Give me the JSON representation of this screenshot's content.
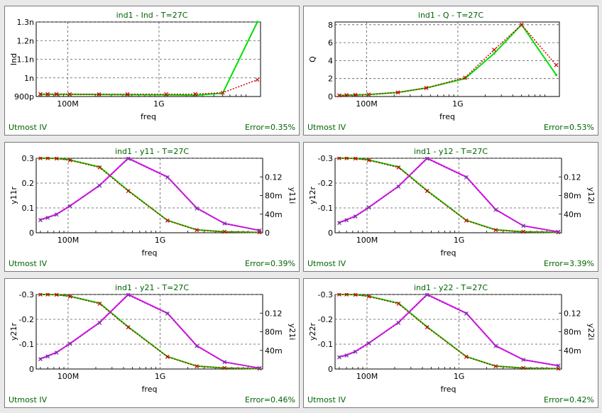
{
  "colors": {
    "measured": "#00e000",
    "simulated": "#cc0000",
    "imag_measured": "#ff00ff",
    "imag_simulated": "#6a3d9a",
    "text": "#006400"
  },
  "chart_data": [
    {
      "type": "line",
      "title": "ind1 - Ind - T=27C",
      "xlabel": "freq",
      "ylabel": "Ind",
      "x_scale": "log",
      "xlim": [
        45000000.0,
        13000000000.0
      ],
      "x_ticks": [
        {
          "v": 100000000.0,
          "label": "100M"
        },
        {
          "v": 1000000000.0,
          "label": "1G"
        }
      ],
      "ylim": [
        9e-10,
        1.3e-09
      ],
      "y_ticks": [
        {
          "v": 9e-10,
          "label": "900p"
        },
        {
          "v": 1e-09,
          "label": "1n"
        },
        {
          "v": 1.1e-09,
          "label": "1.1n"
        },
        {
          "v": 1.2e-09,
          "label": "1.2n"
        },
        {
          "v": 1.3e-09,
          "label": "1.3n"
        }
      ],
      "x": [
        50000000.0,
        60000000.0,
        75000000.0,
        105000000.0,
        220000000.0,
        450000000.0,
        1200000000.0,
        2500000000.0,
        5000000000.0,
        12000000000.0
      ],
      "series": [
        {
          "values": [
            9.12e-10,
            9.12e-10,
            9.12e-10,
            9.12e-10,
            9.11e-10,
            9.1e-10,
            9.09e-10,
            9.07e-10,
            9.18e-10,
            1.3e-09
          ]
        },
        {
          "values": [
            9.13e-10,
            9.13e-10,
            9.13e-10,
            9.12e-10,
            9.12e-10,
            9.12e-10,
            9.12e-10,
            9.13e-10,
            9.2e-10,
            9.9e-10
          ]
        }
      ],
      "footer_label": "Utmost IV",
      "error": "Error=0.35%"
    },
    {
      "type": "line",
      "title": "ind1 - Q - T=27C",
      "xlabel": "freq",
      "ylabel": "Q",
      "x_scale": "log",
      "xlim": [
        45000000.0,
        13000000000.0
      ],
      "x_ticks": [
        {
          "v": 100000000.0,
          "label": "100M"
        },
        {
          "v": 1000000000.0,
          "label": "1G"
        }
      ],
      "ylim": [
        0,
        8.3
      ],
      "y_ticks": [
        {
          "v": 0,
          "label": "0"
        },
        {
          "v": 2,
          "label": "2"
        },
        {
          "v": 4,
          "label": "4"
        },
        {
          "v": 6,
          "label": "6"
        },
        {
          "v": 8,
          "label": "8"
        }
      ],
      "x": [
        50000000.0,
        60000000.0,
        75000000.0,
        105000000.0,
        220000000.0,
        450000000.0,
        1200000000.0,
        2500000000.0,
        5000000000.0,
        12000000000.0
      ],
      "series": [
        {
          "values": [
            0.12,
            0.15,
            0.18,
            0.22,
            0.45,
            0.95,
            2.0,
            4.8,
            8.0,
            2.4
          ]
        },
        {
          "values": [
            0.12,
            0.15,
            0.18,
            0.22,
            0.45,
            0.95,
            2.1,
            5.2,
            8.0,
            3.5
          ]
        }
      ],
      "footer_label": "Utmost IV",
      "error": "Error=0.53%"
    },
    {
      "type": "line",
      "title": "ind1 - y11 - T=27C",
      "xlabel": "freq",
      "ylabel": "y11r",
      "y2label": "y11i",
      "x_scale": "log",
      "xlim": [
        45000000.0,
        13000000000.0
      ],
      "x_ticks": [
        {
          "v": 100000000.0,
          "label": "100M"
        },
        {
          "v": 1000000000.0,
          "label": "1G"
        }
      ],
      "ylim": [
        0,
        0.3
      ],
      "y_ticks": [
        {
          "v": 0,
          "label": "0"
        },
        {
          "v": 0.1,
          "label": "0.1"
        },
        {
          "v": 0.2,
          "label": "0.2"
        },
        {
          "v": 0.3,
          "label": "0.3"
        }
      ],
      "y2lim": [
        0,
        0.16
      ],
      "y2_ticks": [
        {
          "v": 0,
          "label": "0"
        },
        {
          "v": 0.04,
          "label": "40m"
        },
        {
          "v": 0.08,
          "label": "80m"
        },
        {
          "v": 0.12,
          "label": "0.12"
        }
      ],
      "x": [
        50000000.0,
        60000000.0,
        75000000.0,
        105000000.0,
        220000000.0,
        450000000.0,
        1200000000.0,
        2500000000.0,
        5000000000.0,
        12000000000.0
      ],
      "series": [
        {
          "axis": "y",
          "values": [
            0.3,
            0.3,
            0.299,
            0.293,
            0.265,
            0.17,
            0.05,
            0.012,
            0.004,
            0.0015
          ]
        },
        {
          "axis": "y",
          "values": [
            0.3,
            0.3,
            0.299,
            0.292,
            0.263,
            0.168,
            0.049,
            0.011,
            0.004,
            0.0015
          ]
        },
        {
          "axis": "y2",
          "values": [
            0.028,
            0.033,
            0.04,
            0.058,
            0.102,
            0.16,
            0.12,
            0.053,
            0.02,
            0.005
          ]
        },
        {
          "axis": "y2",
          "values": [
            0.027,
            0.032,
            0.039,
            0.057,
            0.101,
            0.159,
            0.119,
            0.052,
            0.02,
            0.005
          ]
        }
      ],
      "footer_label": "Utmost IV",
      "error": "Error=0.39%"
    },
    {
      "type": "line",
      "title": "ind1 - y12 - T=27C",
      "xlabel": "freq",
      "ylabel": "y12r",
      "y2label": "y12i",
      "x_scale": "log",
      "xlim": [
        45000000.0,
        13000000000.0
      ],
      "x_ticks": [
        {
          "v": 100000000.0,
          "label": "100M"
        },
        {
          "v": 1000000000.0,
          "label": "1G"
        }
      ],
      "ylim": [
        0,
        0.3
      ],
      "y_ticks": [
        {
          "v": 0,
          "label": "0"
        },
        {
          "v": 0.1,
          "label": "-0.1"
        },
        {
          "v": 0.2,
          "label": "-0.2"
        },
        {
          "v": 0.3,
          "label": "-0.3"
        }
      ],
      "y2lim": [
        0,
        0.16
      ],
      "y2_ticks": [
        {
          "v": 0.04,
          "label": "40m"
        },
        {
          "v": 0.08,
          "label": "80m"
        },
        {
          "v": 0.12,
          "label": "0.12"
        }
      ],
      "x": [
        50000000.0,
        60000000.0,
        75000000.0,
        105000000.0,
        220000000.0,
        450000000.0,
        1200000000.0,
        2500000000.0,
        5000000000.0,
        12000000000.0
      ],
      "series": [
        {
          "axis": "y",
          "values": [
            0.3,
            0.3,
            0.299,
            0.293,
            0.265,
            0.17,
            0.05,
            0.012,
            0.004,
            0.0015
          ]
        },
        {
          "axis": "y",
          "values": [
            0.3,
            0.3,
            0.299,
            0.292,
            0.263,
            0.168,
            0.049,
            0.011,
            0.004,
            0.0015
          ]
        },
        {
          "axis": "y2",
          "values": [
            0.022,
            0.028,
            0.036,
            0.055,
            0.1,
            0.16,
            0.12,
            0.05,
            0.015,
            0.002
          ]
        },
        {
          "axis": "y2",
          "values": [
            0.021,
            0.027,
            0.035,
            0.054,
            0.099,
            0.159,
            0.119,
            0.049,
            0.015,
            0.002
          ]
        }
      ],
      "footer_label": "Utmost IV",
      "error": "Error=3.39%"
    },
    {
      "type": "line",
      "title": "ind1 - y21 - T=27C",
      "xlabel": "freq",
      "ylabel": "y21r",
      "y2label": "y21i",
      "x_scale": "log",
      "xlim": [
        45000000.0,
        13000000000.0
      ],
      "x_ticks": [
        {
          "v": 100000000.0,
          "label": "100M"
        },
        {
          "v": 1000000000.0,
          "label": "1G"
        }
      ],
      "ylim": [
        0,
        0.3
      ],
      "y_ticks": [
        {
          "v": 0,
          "label": "0"
        },
        {
          "v": 0.1,
          "label": "-0.1"
        },
        {
          "v": 0.2,
          "label": "-0.2"
        },
        {
          "v": 0.3,
          "label": "-0.3"
        }
      ],
      "y2lim": [
        0,
        0.16
      ],
      "y2_ticks": [
        {
          "v": 0.04,
          "label": "40m"
        },
        {
          "v": 0.08,
          "label": "80m"
        },
        {
          "v": 0.12,
          "label": "0.12"
        }
      ],
      "x": [
        50000000.0,
        60000000.0,
        75000000.0,
        105000000.0,
        220000000.0,
        450000000.0,
        1200000000.0,
        2500000000.0,
        5000000000.0,
        12000000000.0
      ],
      "series": [
        {
          "axis": "y",
          "values": [
            0.3,
            0.3,
            0.299,
            0.293,
            0.265,
            0.17,
            0.05,
            0.012,
            0.004,
            0.0015
          ]
        },
        {
          "axis": "y",
          "values": [
            0.3,
            0.3,
            0.299,
            0.292,
            0.263,
            0.168,
            0.049,
            0.011,
            0.004,
            0.0015
          ]
        },
        {
          "axis": "y2",
          "values": [
            0.022,
            0.028,
            0.036,
            0.055,
            0.1,
            0.16,
            0.12,
            0.05,
            0.015,
            0.002
          ]
        },
        {
          "axis": "y2",
          "values": [
            0.021,
            0.027,
            0.035,
            0.054,
            0.099,
            0.159,
            0.119,
            0.049,
            0.015,
            0.002
          ]
        }
      ],
      "footer_label": "Utmost IV",
      "error": "Error=0.46%"
    },
    {
      "type": "line",
      "title": "ind1 - y22 - T=27C",
      "xlabel": "freq",
      "ylabel": "y22r",
      "y2label": "y22i",
      "x_scale": "log",
      "xlim": [
        45000000.0,
        13000000000.0
      ],
      "x_ticks": [
        {
          "v": 100000000.0,
          "label": "100M"
        },
        {
          "v": 1000000000.0,
          "label": "1G"
        }
      ],
      "ylim": [
        0,
        0.3
      ],
      "y_ticks": [
        {
          "v": 0,
          "label": "0"
        },
        {
          "v": 0.1,
          "label": "-0.1"
        },
        {
          "v": 0.2,
          "label": "-0.2"
        },
        {
          "v": 0.3,
          "label": "-0.3"
        }
      ],
      "y2lim": [
        0,
        0.16
      ],
      "y2_ticks": [
        {
          "v": 0.04,
          "label": "40m"
        },
        {
          "v": 0.08,
          "label": "80m"
        },
        {
          "v": 0.12,
          "label": "0.12"
        }
      ],
      "x": [
        50000000.0,
        60000000.0,
        75000000.0,
        105000000.0,
        220000000.0,
        450000000.0,
        1200000000.0,
        2500000000.0,
        5000000000.0,
        12000000000.0
      ],
      "series": [
        {
          "axis": "y",
          "values": [
            0.3,
            0.3,
            0.299,
            0.293,
            0.265,
            0.17,
            0.05,
            0.012,
            0.004,
            0.0015
          ]
        },
        {
          "axis": "y",
          "values": [
            0.3,
            0.3,
            0.299,
            0.292,
            0.263,
            0.168,
            0.049,
            0.011,
            0.004,
            0.0015
          ]
        },
        {
          "axis": "y2",
          "values": [
            0.026,
            0.03,
            0.038,
            0.056,
            0.1,
            0.16,
            0.12,
            0.05,
            0.02,
            0.007
          ]
        },
        {
          "axis": "y2",
          "values": [
            0.025,
            0.029,
            0.037,
            0.055,
            0.099,
            0.159,
            0.119,
            0.049,
            0.02,
            0.007
          ]
        }
      ],
      "footer_label": "Utmost IV",
      "error": "Error=0.42%"
    }
  ]
}
